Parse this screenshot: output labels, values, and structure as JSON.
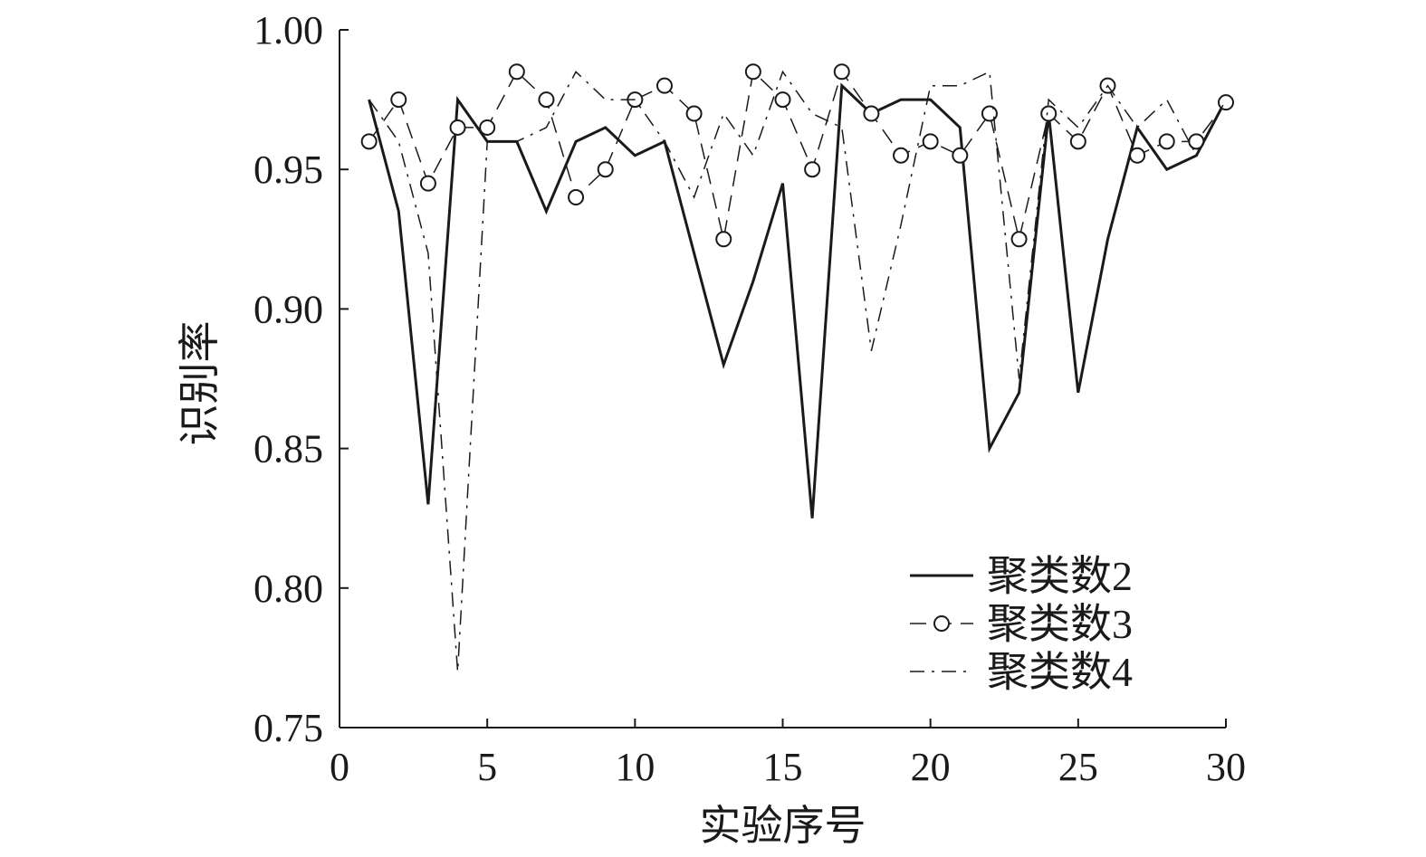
{
  "chart_data": {
    "type": "line",
    "title": "",
    "xlabel": "实验序号",
    "ylabel": "识别率",
    "xlim": [
      0,
      30
    ],
    "ylim": [
      0.75,
      1.0
    ],
    "x_ticks": [
      "0",
      "5",
      "10",
      "15",
      "20",
      "25",
      "30"
    ],
    "y_ticks": [
      "0.75",
      "0.80",
      "0.85",
      "0.90",
      "0.95",
      "1.00"
    ],
    "grid": false,
    "legend_position": "bottom-right",
    "x": [
      1,
      2,
      3,
      4,
      5,
      6,
      7,
      8,
      9,
      10,
      11,
      12,
      13,
      14,
      15,
      16,
      17,
      18,
      19,
      20,
      21,
      22,
      23,
      24,
      25,
      26,
      27,
      28,
      29,
      30
    ],
    "series": [
      {
        "name": "聚类数2",
        "style": "solid",
        "values": [
          0.975,
          0.935,
          0.83,
          0.975,
          0.96,
          0.96,
          0.935,
          0.96,
          0.965,
          0.955,
          0.96,
          0.92,
          0.88,
          0.91,
          0.945,
          0.825,
          0.98,
          0.97,
          0.975,
          0.975,
          0.965,
          0.85,
          0.87,
          0.97,
          0.87,
          0.925,
          0.965,
          0.95,
          0.955,
          0.975
        ]
      },
      {
        "name": "聚类数3",
        "style": "dashed-circle",
        "values": [
          0.96,
          0.975,
          0.945,
          0.965,
          0.965,
          0.985,
          0.975,
          0.94,
          0.95,
          0.975,
          0.98,
          0.97,
          0.925,
          0.985,
          0.975,
          0.95,
          0.985,
          0.97,
          0.955,
          0.96,
          0.955,
          0.97,
          0.925,
          0.97,
          0.96,
          0.98,
          0.955,
          0.96,
          0.96,
          0.974
        ]
      },
      {
        "name": "聚类数4",
        "style": "dashdot",
        "values": [
          0.975,
          0.96,
          0.92,
          0.77,
          0.96,
          0.96,
          0.965,
          0.985,
          0.975,
          0.975,
          0.96,
          0.94,
          0.97,
          0.955,
          0.985,
          0.97,
          0.965,
          0.885,
          0.93,
          0.98,
          0.98,
          0.985,
          0.875,
          0.975,
          0.965,
          0.98,
          0.965,
          0.975,
          0.955,
          0.975
        ]
      }
    ],
    "colors": {
      "line": "#1a1a1a",
      "axis": "#1a1a1a",
      "background": "#ffffff"
    }
  }
}
